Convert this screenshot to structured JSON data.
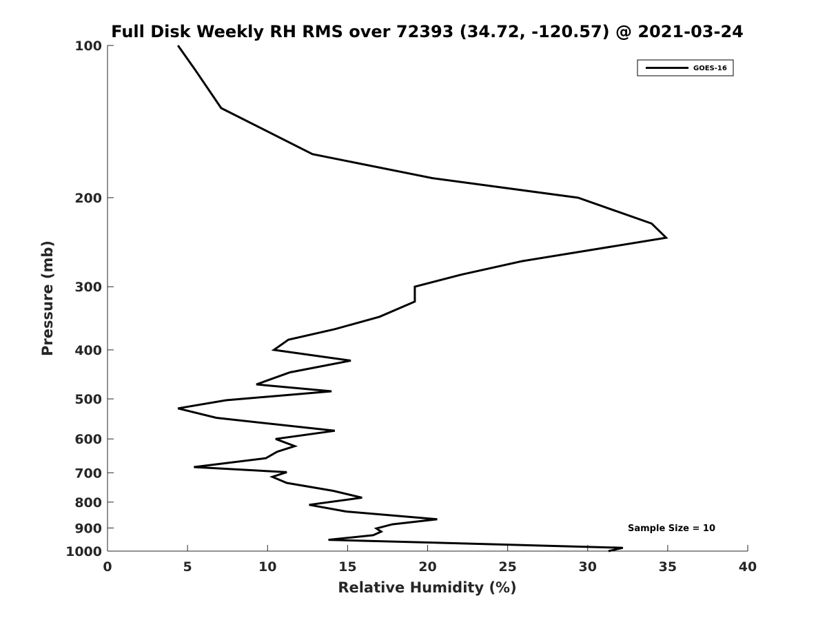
{
  "chart_data": {
    "type": "line",
    "title": "Full Disk Weekly RH RMS over 72393 (34.72, -120.57) @ 2021-03-24",
    "xlabel": "Relative Humidity (%)",
    "ylabel": "Pressure (mb)",
    "xlim": [
      0,
      40
    ],
    "ylim": [
      100,
      1000
    ],
    "yscale": "log",
    "yreversed": true,
    "x_ticks": [
      "0",
      "5",
      "10",
      "15",
      "20",
      "25",
      "30",
      "35",
      "40"
    ],
    "y_ticks": [
      "100",
      "200",
      "300",
      "400",
      "500",
      "600",
      "700",
      "800",
      "900",
      "1000"
    ],
    "grid": false,
    "legend": {
      "position": "top-right",
      "entries": [
        "GOES-16"
      ]
    },
    "annotation": "Sample Size = 10",
    "series": [
      {
        "name": "GOES-16",
        "color": "#000000",
        "x": [
          4.4,
          5.5,
          7.1,
          12.8,
          20.3,
          29.4,
          34.0,
          34.9,
          25.9,
          22.1,
          19.2,
          19.2,
          17.0,
          14.2,
          11.3,
          10.4,
          15.2,
          11.4,
          9.3,
          14.0,
          7.4,
          4.4,
          6.8,
          14.2,
          10.5,
          11.7,
          10.6,
          9.9,
          5.4,
          11.2,
          10.3,
          11.2,
          14.1,
          15.9,
          12.6,
          14.9,
          20.6,
          17.8,
          16.8,
          17.1,
          16.6,
          13.8,
          32.2,
          31.3
        ],
        "y": [
          100,
          112,
          133,
          164,
          183,
          200,
          225,
          240,
          267,
          284,
          300,
          321,
          344,
          364,
          382,
          400,
          420,
          443,
          468,
          483,
          503,
          522,
          545,
          578,
          600,
          620,
          636,
          655,
          682,
          698,
          713,
          733,
          760,
          784,
          810,
          835,
          865,
          885,
          902,
          915,
          930,
          950,
          985,
          1000
        ]
      }
    ]
  }
}
